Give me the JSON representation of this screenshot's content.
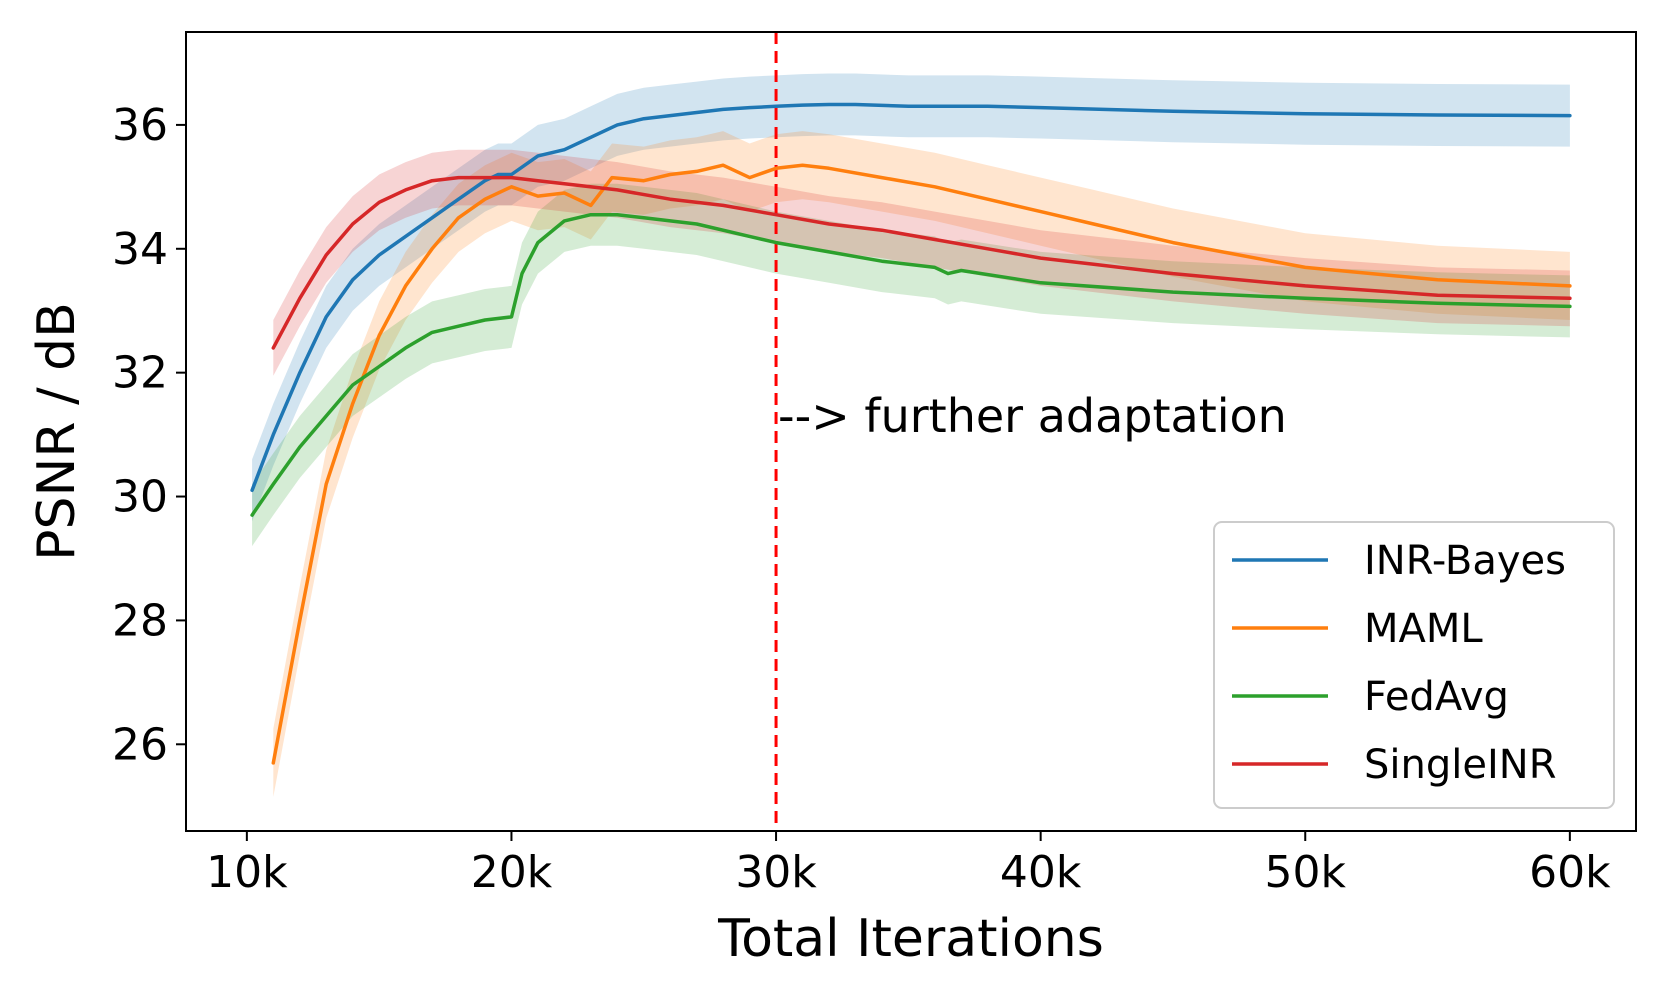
{
  "chart_data": {
    "type": "line",
    "title": "",
    "xlabel": "Total Iterations",
    "ylabel": "PSNR / dB",
    "xlim": [
      7700,
      62500
    ],
    "ylim": [
      24.6,
      37.5
    ],
    "x_ticks": [
      {
        "value": 10000,
        "label": "10k"
      },
      {
        "value": 20000,
        "label": "20k"
      },
      {
        "value": 30000,
        "label": "30k"
      },
      {
        "value": 40000,
        "label": "40k"
      },
      {
        "value": 50000,
        "label": "50k"
      },
      {
        "value": 60000,
        "label": "60k"
      }
    ],
    "y_ticks": [
      {
        "value": 26,
        "label": "26"
      },
      {
        "value": 28,
        "label": "28"
      },
      {
        "value": 30,
        "label": "30"
      },
      {
        "value": 32,
        "label": "32"
      },
      {
        "value": 34,
        "label": "34"
      },
      {
        "value": 36,
        "label": "36"
      }
    ],
    "grid": false,
    "legend_position": "lower-right",
    "vline": {
      "x": 30000,
      "color": "#ff0000",
      "style": "dashed"
    },
    "annotation": {
      "text": "--> further adaptation",
      "x": 30000,
      "y": 31.3
    },
    "series": [
      {
        "name": "INR-Bayes",
        "color": "#1f77b4",
        "x": [
          10200,
          11000,
          12000,
          13000,
          14000,
          15000,
          16000,
          17000,
          18000,
          19000,
          19500,
          20000,
          21000,
          22000,
          23000,
          24000,
          25000,
          26000,
          27000,
          28000,
          29000,
          30000,
          31000,
          32000,
          33000,
          35000,
          36000,
          38000,
          40000,
          45000,
          50000,
          55000,
          60000
        ],
        "y": [
          30.1,
          31.0,
          32.0,
          32.9,
          33.5,
          33.9,
          34.2,
          34.5,
          34.8,
          35.1,
          35.2,
          35.2,
          35.5,
          35.6,
          35.8,
          36.0,
          36.1,
          36.15,
          36.2,
          36.25,
          36.28,
          36.3,
          36.32,
          36.33,
          36.33,
          36.3,
          36.3,
          36.3,
          36.28,
          36.22,
          36.18,
          36.16,
          36.15
        ],
        "band": 0.5
      },
      {
        "name": "MAML",
        "color": "#ff7f0e",
        "x": [
          11000,
          12000,
          13000,
          14000,
          15000,
          16000,
          17000,
          18000,
          19000,
          20000,
          21000,
          22000,
          23000,
          23800,
          25000,
          26000,
          27000,
          28000,
          29000,
          30000,
          31000,
          32000,
          34000,
          36000,
          38000,
          40000,
          42000,
          45000,
          50000,
          55000,
          60000
        ],
        "y": [
          25.7,
          28.0,
          30.2,
          31.5,
          32.6,
          33.4,
          34.0,
          34.5,
          34.8,
          35.0,
          34.85,
          34.9,
          34.7,
          35.15,
          35.1,
          35.2,
          35.25,
          35.35,
          35.15,
          35.3,
          35.35,
          35.3,
          35.15,
          35.0,
          34.8,
          34.6,
          34.4,
          34.1,
          33.7,
          33.5,
          33.4
        ],
        "band": 0.55
      },
      {
        "name": "FedAvg",
        "color": "#2ca02c",
        "x": [
          10200,
          11000,
          12000,
          13000,
          14000,
          15000,
          16000,
          17000,
          18000,
          19000,
          20000,
          20400,
          21000,
          22000,
          23000,
          24000,
          25000,
          27000,
          29000,
          30000,
          32000,
          34000,
          36000,
          36500,
          37000,
          40000,
          45000,
          50000,
          55000,
          60000
        ],
        "y": [
          29.7,
          30.2,
          30.8,
          31.3,
          31.8,
          32.1,
          32.4,
          32.65,
          32.75,
          32.85,
          32.9,
          33.6,
          34.1,
          34.45,
          34.55,
          34.55,
          34.5,
          34.4,
          34.2,
          34.1,
          33.95,
          33.8,
          33.7,
          33.6,
          33.65,
          33.45,
          33.3,
          33.2,
          33.12,
          33.07
        ],
        "band": 0.5
      },
      {
        "name": "SingleINR",
        "color": "#d62728",
        "x": [
          11000,
          12000,
          13000,
          14000,
          15000,
          16000,
          17000,
          18000,
          19000,
          20000,
          21000,
          22000,
          24000,
          26000,
          28000,
          30000,
          32000,
          34000,
          36000,
          38000,
          40000,
          42000,
          45000,
          50000,
          55000,
          60000
        ],
        "y": [
          32.4,
          33.2,
          33.9,
          34.4,
          34.75,
          34.95,
          35.1,
          35.15,
          35.15,
          35.15,
          35.1,
          35.05,
          34.95,
          34.8,
          34.7,
          34.55,
          34.4,
          34.3,
          34.15,
          34.0,
          33.85,
          33.75,
          33.6,
          33.4,
          33.25,
          33.2
        ],
        "band": 0.45
      }
    ]
  }
}
